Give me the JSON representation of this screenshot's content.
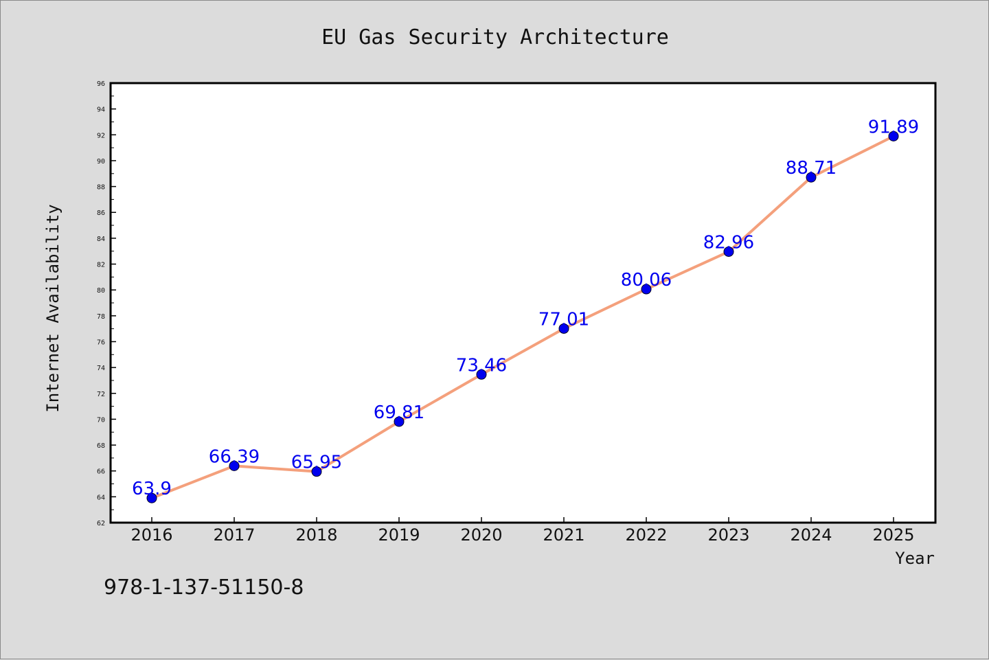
{
  "chart_data": {
    "type": "line",
    "title": "EU Gas Security Architecture",
    "xlabel": "Year",
    "ylabel": "Internet Availability",
    "categories": [
      "2016",
      "2017",
      "2018",
      "2019",
      "2020",
      "2021",
      "2022",
      "2023",
      "2024",
      "2025"
    ],
    "series": [
      {
        "values": [
          63.9,
          66.39,
          65.95,
          69.81,
          73.46,
          77.01,
          80.06,
          82.96,
          88.71,
          91.89
        ],
        "labels": [
          "63.9",
          "66.39",
          "65.95",
          "69.81",
          "73.46",
          "77.01",
          "80.06",
          "82.96",
          "88.71",
          "91.89"
        ],
        "line_color": "#f4a07c",
        "marker_color": "#0000ee"
      }
    ],
    "ylim": [
      62,
      96
    ],
    "yticks": [
      "62",
      "64",
      "66",
      "68",
      "70",
      "72",
      "74",
      "76",
      "78",
      "80",
      "82",
      "84",
      "86",
      "88",
      "90",
      "92",
      "94",
      "96"
    ],
    "grid": false,
    "legend": "none"
  },
  "footer": {
    "isbn": "978-1-137-51150-8"
  }
}
